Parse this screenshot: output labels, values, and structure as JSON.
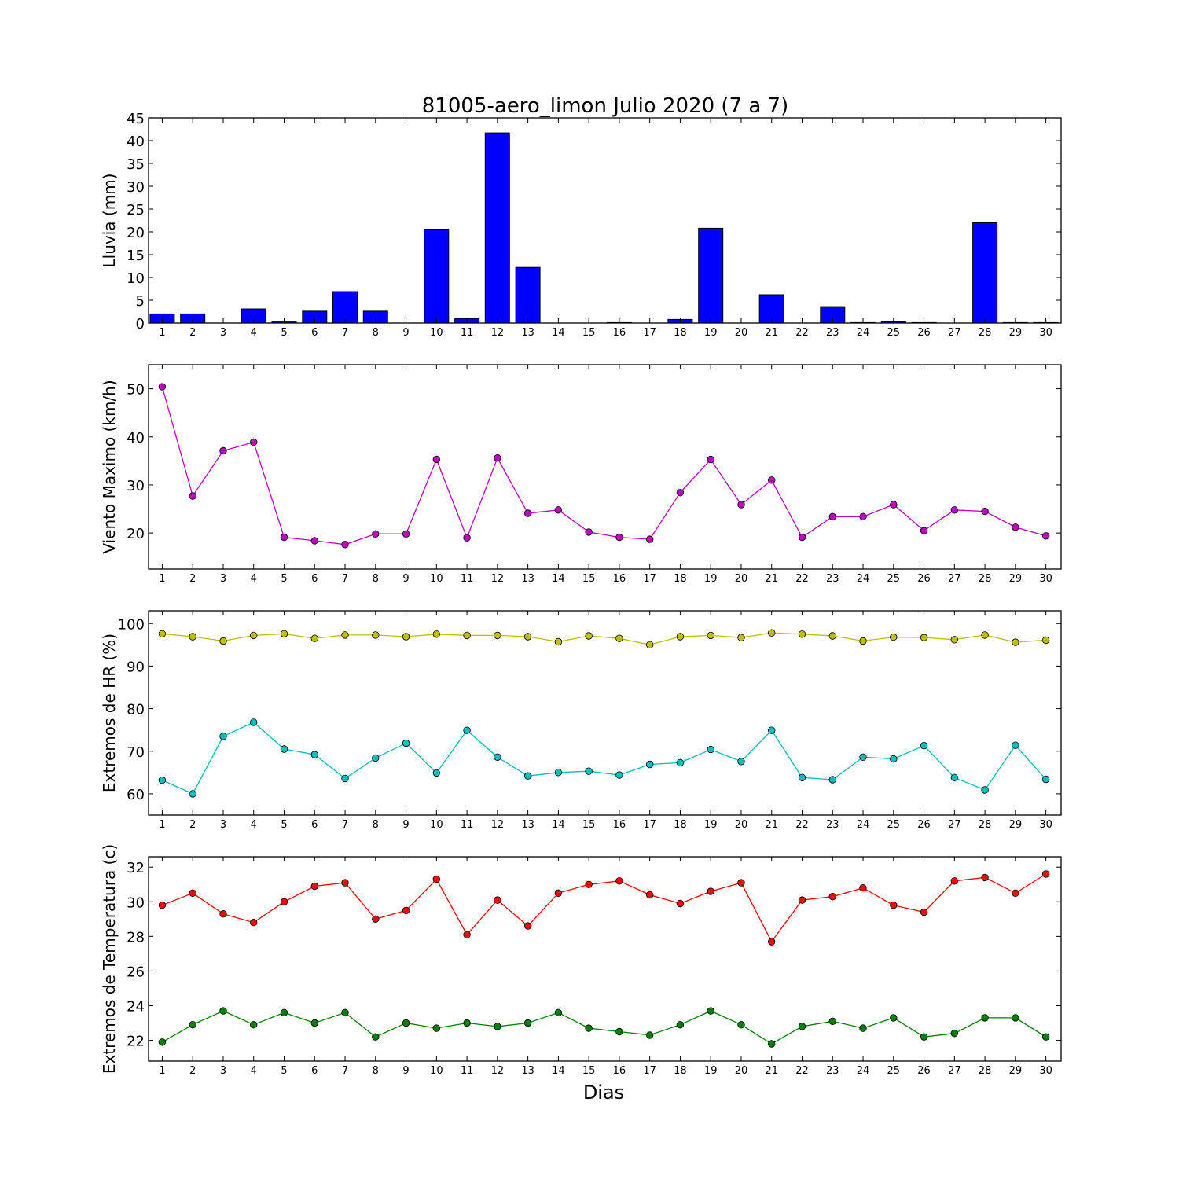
{
  "title": "81005-aero_limon Julio 2020  (7 a 7)",
  "xlabel": "Dias",
  "chart_data": [
    {
      "type": "bar",
      "ylabel": "Lluvia (mm)",
      "x": [
        1,
        2,
        3,
        4,
        5,
        6,
        7,
        8,
        9,
        10,
        11,
        12,
        13,
        14,
        15,
        16,
        17,
        18,
        19,
        20,
        21,
        22,
        23,
        24,
        25,
        26,
        27,
        28,
        29,
        30
      ],
      "values": [
        2.0,
        2.0,
        0,
        3.1,
        0.4,
        2.6,
        6.9,
        2.6,
        0,
        20.6,
        1.0,
        41.7,
        12.2,
        0,
        0,
        0.1,
        0,
        0.8,
        20.8,
        0,
        6.2,
        0,
        3.6,
        0.1,
        0.3,
        0.1,
        0,
        22.0,
        0.1,
        0.1
      ],
      "ylim": [
        0,
        45
      ],
      "yticks": [
        0,
        5,
        10,
        15,
        20,
        25,
        30,
        35,
        40,
        45
      ],
      "xlim": [
        0.55,
        30.5
      ],
      "color": "#0000ff"
    },
    {
      "type": "line",
      "ylabel": "Viento Maximo (km/h)",
      "x": [
        1,
        2,
        3,
        4,
        5,
        6,
        7,
        8,
        9,
        10,
        11,
        12,
        13,
        14,
        15,
        16,
        17,
        18,
        19,
        20,
        21,
        22,
        23,
        24,
        25,
        26,
        27,
        28,
        29,
        30
      ],
      "series": [
        {
          "color": "#bf00bf",
          "values": [
            50.4,
            27.7,
            37.1,
            38.9,
            19.1,
            18.4,
            17.6,
            19.8,
            19.8,
            35.3,
            19.0,
            35.6,
            24.1,
            24.8,
            20.2,
            19.1,
            18.7,
            28.4,
            35.3,
            25.9,
            31.0,
            19.1,
            23.4,
            23.4,
            25.9,
            20.5,
            24.8,
            24.5,
            21.2,
            19.4
          ]
        }
      ],
      "ylim": [
        12.5,
        55
      ],
      "yticks": [
        20,
        30,
        40,
        50
      ],
      "xlim": [
        0.55,
        30.5
      ]
    },
    {
      "type": "line",
      "ylabel": "Extremos de HR (%)",
      "x": [
        1,
        2,
        3,
        4,
        5,
        6,
        7,
        8,
        9,
        10,
        11,
        12,
        13,
        14,
        15,
        16,
        17,
        18,
        19,
        20,
        21,
        22,
        23,
        24,
        25,
        26,
        27,
        28,
        29,
        30
      ],
      "series": [
        {
          "color": "#bfbf00",
          "values": [
            97.6,
            96.9,
            95.9,
            97.2,
            97.6,
            96.5,
            97.3,
            97.3,
            96.9,
            97.5,
            97.2,
            97.2,
            96.9,
            95.7,
            97.1,
            96.5,
            95.0,
            96.9,
            97.2,
            96.7,
            97.8,
            97.5,
            97.1,
            95.9,
            96.8,
            96.7,
            96.2,
            97.3,
            95.6,
            96.1
          ]
        },
        {
          "color": "#00bfbf",
          "values": [
            63.2,
            60.0,
            73.5,
            76.8,
            70.5,
            69.2,
            63.6,
            68.4,
            71.9,
            64.9,
            74.9,
            68.6,
            64.2,
            65.0,
            65.3,
            64.4,
            66.9,
            67.3,
            70.4,
            67.6,
            74.9,
            63.8,
            63.3,
            68.6,
            68.2,
            71.3,
            63.8,
            60.9,
            71.4,
            63.4
          ]
        }
      ],
      "ylim": [
        55,
        103
      ],
      "yticks": [
        60,
        70,
        80,
        90,
        100
      ],
      "xlim": [
        0.55,
        30.5
      ]
    },
    {
      "type": "line",
      "ylabel": "Extremos de Temperatura (c)",
      "x": [
        1,
        2,
        3,
        4,
        5,
        6,
        7,
        8,
        9,
        10,
        11,
        12,
        13,
        14,
        15,
        16,
        17,
        18,
        19,
        20,
        21,
        22,
        23,
        24,
        25,
        26,
        27,
        28,
        29,
        30
      ],
      "series": [
        {
          "color": "#ff0000",
          "values": [
            29.8,
            30.5,
            29.3,
            28.8,
            30.0,
            30.9,
            31.1,
            29.0,
            29.5,
            31.3,
            28.1,
            30.1,
            28.6,
            30.5,
            31.0,
            31.2,
            30.4,
            29.9,
            30.6,
            31.1,
            27.7,
            30.1,
            30.3,
            30.8,
            29.8,
            29.4,
            31.2,
            31.4,
            30.5,
            31.6
          ]
        },
        {
          "color": "#008000",
          "values": [
            21.9,
            22.9,
            23.7,
            22.9,
            23.6,
            23.0,
            23.6,
            22.2,
            23.0,
            22.7,
            23.0,
            22.8,
            23.0,
            23.6,
            22.7,
            22.5,
            22.3,
            22.9,
            23.7,
            22.9,
            21.8,
            22.8,
            23.1,
            22.7,
            23.3,
            22.2,
            22.4,
            23.3,
            23.3,
            22.2
          ]
        }
      ],
      "ylim": [
        20.8,
        32.6
      ],
      "yticks": [
        22,
        24,
        26,
        28,
        30,
        32
      ],
      "xlim": [
        0.55,
        30.5
      ]
    }
  ]
}
